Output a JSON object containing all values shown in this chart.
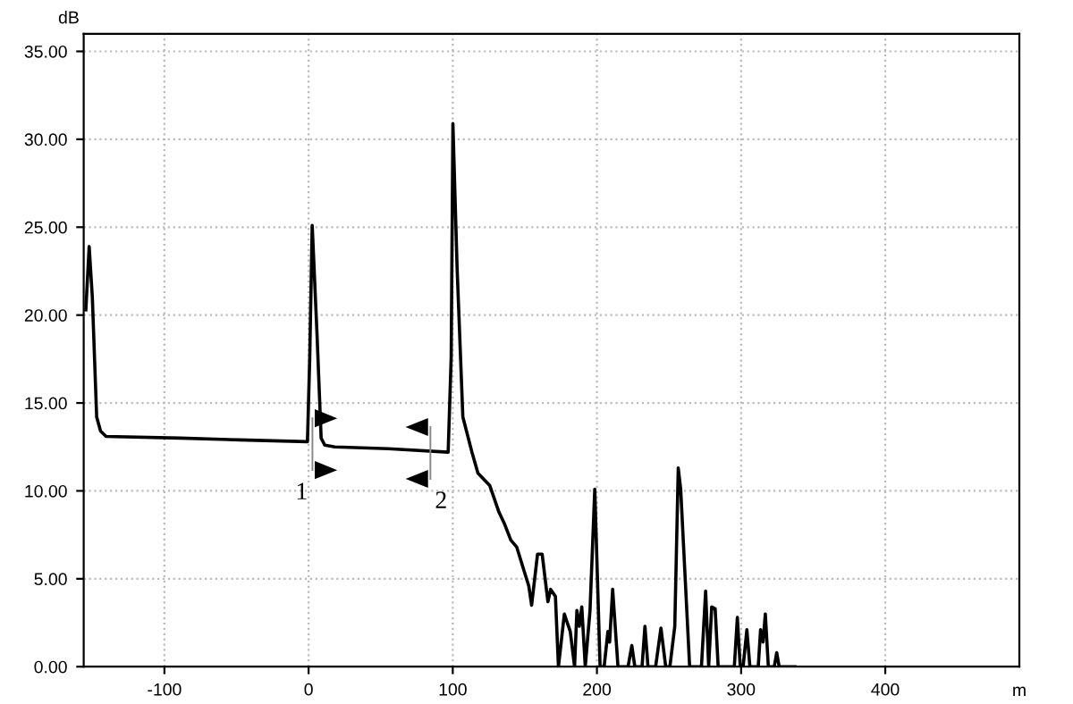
{
  "chart_data": {
    "type": "line",
    "xlabel": "m",
    "ylabel": "dB",
    "series": [
      {
        "color": "#000000",
        "x": [
          -154.5,
          -152.2,
          -150,
          -147,
          -144.3,
          -140.5,
          -89,
          -48,
          -0.8,
          0.8,
          2.5,
          5.8,
          8.7,
          11.2,
          18.2,
          55.4,
          96.8,
          98.9,
          100.1,
          103,
          107,
          113.3,
          117.5,
          125.7,
          132,
          136,
          140.3,
          144.4,
          148.5,
          152.7,
          154.7,
          158.8,
          162,
          166,
          167.9,
          171.2,
          173.3,
          177.4,
          181.5,
          184.5,
          186.1,
          187.8,
          189.5,
          191.9,
          195.2,
          198.5,
          202.2,
          205,
          207.6,
          208.8,
          210.9,
          214.6,
          221.6,
          224.2,
          226.3,
          231.3,
          233.3,
          235.4,
          240.7,
          244.4,
          247.7,
          250.6,
          254,
          256.4,
          258.1,
          264.3,
          272.5,
          275.4,
          277.5,
          279.6,
          282,
          284.1,
          295.3,
          297.4,
          299.4,
          301.4,
          304,
          306.1,
          311.9,
          313.5,
          315.2,
          316.8,
          318.9,
          323,
          324.7,
          326.4,
          337.5
        ],
        "values": [
          20.3,
          23.9,
          21,
          14.2,
          13.4,
          13.1,
          13.0,
          12.9,
          12.8,
          17.6,
          25.1,
          19.0,
          13.0,
          12.6,
          12.5,
          12.4,
          12.2,
          17.6,
          30.9,
          22.7,
          14.2,
          12.2,
          11.0,
          10.3,
          8.8,
          8.1,
          7.2,
          6.8,
          5.7,
          4.6,
          3.5,
          6.4,
          6.4,
          3.7,
          4.4,
          4.0,
          0,
          3.0,
          2.0,
          0,
          3.2,
          2.3,
          3.4,
          0,
          3.2,
          10.1,
          0,
          0,
          2.0,
          1.4,
          4.4,
          0,
          0,
          1.2,
          0,
          0,
          2.3,
          0,
          0,
          2.2,
          0,
          0,
          2.3,
          11.3,
          10.1,
          0,
          0,
          4.3,
          0,
          3.4,
          3.3,
          0,
          0,
          2.8,
          0,
          0,
          2.1,
          0,
          0,
          2.1,
          1.4,
          3.0,
          0,
          0,
          0.8,
          0,
          0
        ]
      }
    ],
    "xlim": [
      -156,
      493
    ],
    "xticks": [
      -100,
      0,
      100,
      200,
      300,
      400
    ],
    "ylim": [
      0,
      36
    ],
    "yticks": [
      {
        "value": 0,
        "label": "0.00"
      },
      {
        "value": 5,
        "label": "5.00"
      },
      {
        "value": 10,
        "label": "10.00"
      },
      {
        "value": 15,
        "label": "15.00"
      },
      {
        "value": 20,
        "label": "20.00"
      },
      {
        "value": 25,
        "label": "25.00"
      },
      {
        "value": 30,
        "label": "30.00"
      },
      {
        "value": 35,
        "label": "35.00"
      }
    ],
    "annotations": [
      "1",
      "2"
    ],
    "grid": true,
    "legend": false,
    "marker": "none",
    "line_style": "solid"
  }
}
